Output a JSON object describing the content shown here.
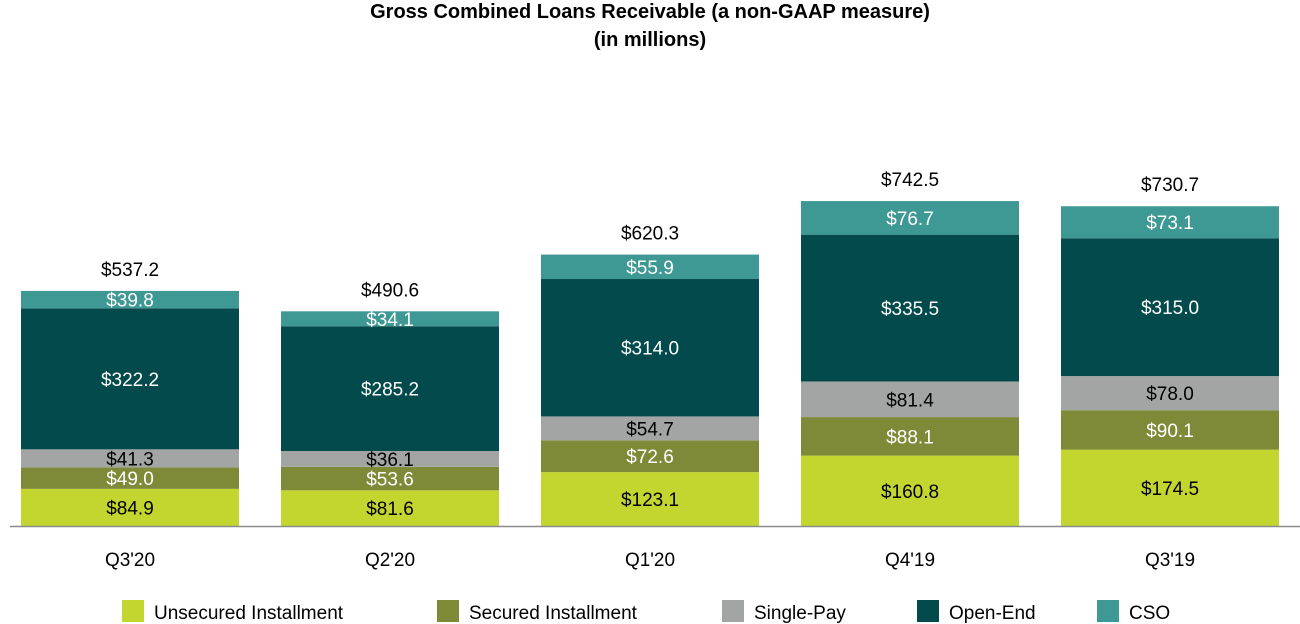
{
  "chart_data": {
    "type": "bar",
    "stacked": true,
    "title": "Gross Combined Loans Receivable (a non-GAAP measure)",
    "subtitle": "(in millions)",
    "xlabel": "",
    "ylabel": "",
    "ylim": [
      0,
      800
    ],
    "grid": false,
    "legend_position": "bottom",
    "categories": [
      "Q3'20",
      "Q2'20",
      "Q1'20",
      "Q4'19",
      "Q3'19"
    ],
    "series": [
      {
        "name": "Unsecured Installment",
        "color": "#c3d62f",
        "label_color": "#000000",
        "values": [
          84.9,
          81.6,
          123.1,
          160.8,
          174.5
        ],
        "labels": [
          "$84.9",
          "$81.6",
          "$123.1",
          "$160.8",
          "$174.5"
        ]
      },
      {
        "name": "Secured Installment",
        "color": "#7f8a38",
        "label_color": "#ffffff",
        "values": [
          49.0,
          53.6,
          72.6,
          88.1,
          90.1
        ],
        "labels": [
          "$49.0",
          "$53.6",
          "$72.6",
          "$88.1",
          "$90.1"
        ]
      },
      {
        "name": "Single-Pay",
        "color": "#a3a5a5",
        "label_color": "#000000",
        "values": [
          41.3,
          36.1,
          54.7,
          81.4,
          78.0
        ],
        "labels": [
          "$41.3",
          "$36.1",
          "$54.7",
          "$81.4",
          "$78.0"
        ]
      },
      {
        "name": "Open-End",
        "color": "#024a4b",
        "label_color": "#ffffff",
        "values": [
          322.2,
          285.2,
          314.0,
          335.5,
          315.0
        ],
        "labels": [
          "$322.2",
          "$285.2",
          "$314.0",
          "$335.5",
          "$315.0"
        ]
      },
      {
        "name": "CSO",
        "color": "#3e9894",
        "label_color": "#ffffff",
        "values": [
          39.8,
          34.1,
          55.9,
          76.7,
          73.1
        ],
        "labels": [
          "$39.8",
          "$34.1",
          "$55.9",
          "$76.7",
          "$73.1"
        ]
      }
    ],
    "totals": [
      537.2,
      490.6,
      620.3,
      742.5,
      730.7
    ],
    "total_labels": [
      "$537.2",
      "$490.6",
      "$620.3",
      "$742.5",
      "$730.7"
    ]
  }
}
